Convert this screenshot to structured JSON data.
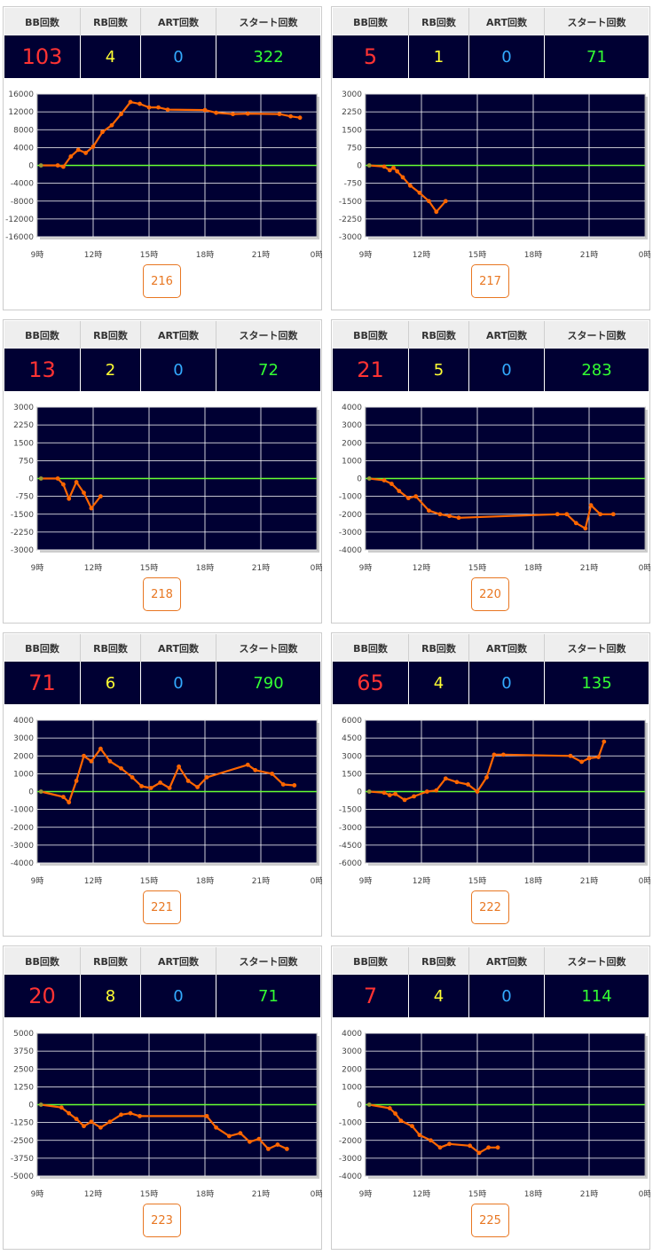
{
  "headers": {
    "bb": "BB回数",
    "rb": "RB回数",
    "art": "ART回数",
    "start": "スタート回数"
  },
  "x_ticks": [
    "9時",
    "12時",
    "15時",
    "18時",
    "21時",
    "0時"
  ],
  "colors": {
    "bb": "#ff3333",
    "rb": "#ffff33",
    "art": "#33aaff",
    "start": "#33ff33",
    "plot_bg": "#000033",
    "zero_line": "#66ff33",
    "series": "#ff6600",
    "button": "#e87722"
  },
  "cards": [
    {
      "machine": "216",
      "bb": "103",
      "rb": "4",
      "art": "0",
      "start": "322",
      "chart_data": {
        "type": "line",
        "xlim": [
          9,
          24
        ],
        "yticks": [
          16000,
          12000,
          8000,
          4000,
          0,
          -4000,
          -8000,
          -12000,
          -16000
        ],
        "ytick_labels": [
          "16000",
          "12000",
          "8000",
          "4000",
          "0",
          "-4000",
          "-8000",
          "-12000",
          "-16000"
        ],
        "ylim": [
          -16000,
          16000
        ],
        "points": [
          [
            9.2,
            0
          ],
          [
            10.1,
            0
          ],
          [
            10.4,
            -300
          ],
          [
            10.8,
            2000
          ],
          [
            11.2,
            3500
          ],
          [
            11.6,
            2800
          ],
          [
            12.0,
            4200
          ],
          [
            12.5,
            7500
          ],
          [
            13.0,
            9000
          ],
          [
            13.5,
            11500
          ],
          [
            14.0,
            14200
          ],
          [
            14.5,
            13800
          ],
          [
            15.0,
            13000
          ],
          [
            15.5,
            13000
          ],
          [
            16.0,
            12500
          ],
          [
            18.0,
            12400
          ],
          [
            18.6,
            11800
          ],
          [
            19.5,
            11500
          ],
          [
            20.3,
            11600
          ],
          [
            22.0,
            11500
          ],
          [
            22.6,
            11000
          ],
          [
            23.1,
            10700
          ]
        ]
      }
    },
    {
      "machine": "217",
      "bb": "5",
      "rb": "1",
      "art": "0",
      "start": "71",
      "chart_data": {
        "type": "line",
        "xlim": [
          9,
          24
        ],
        "yticks": [
          3000,
          2250,
          1500,
          750,
          0,
          -750,
          -1500,
          -2250,
          -3000
        ],
        "ytick_labels": [
          "3000",
          "2250",
          "1500",
          "750",
          "0",
          "-750",
          "-1500",
          "-2250",
          "-3000"
        ],
        "ylim": [
          -3000,
          3000
        ],
        "points": [
          [
            9.2,
            0
          ],
          [
            10.0,
            -50
          ],
          [
            10.3,
            -200
          ],
          [
            10.5,
            -100
          ],
          [
            10.7,
            -250
          ],
          [
            11.0,
            -500
          ],
          [
            11.4,
            -850
          ],
          [
            11.9,
            -1150
          ],
          [
            12.4,
            -1500
          ],
          [
            12.8,
            -1950
          ],
          [
            13.3,
            -1500
          ]
        ]
      }
    },
    {
      "machine": "218",
      "bb": "13",
      "rb": "2",
      "art": "0",
      "start": "72",
      "chart_data": {
        "type": "line",
        "xlim": [
          9,
          24
        ],
        "yticks": [
          3000,
          2250,
          1500,
          750,
          0,
          -750,
          -1500,
          -2250,
          -3000
        ],
        "ytick_labels": [
          "3000",
          "2250",
          "1500",
          "750",
          "0",
          "-750",
          "-1500",
          "-2250",
          "-3000"
        ],
        "ylim": [
          -3000,
          3000
        ],
        "points": [
          [
            9.2,
            0
          ],
          [
            10.1,
            0
          ],
          [
            10.4,
            -250
          ],
          [
            10.7,
            -850
          ],
          [
            11.1,
            -150
          ],
          [
            11.5,
            -600
          ],
          [
            11.9,
            -1250
          ],
          [
            12.4,
            -750
          ]
        ]
      }
    },
    {
      "machine": "220",
      "bb": "21",
      "rb": "5",
      "art": "0",
      "start": "283",
      "chart_data": {
        "type": "line",
        "xlim": [
          9,
          24
        ],
        "yticks": [
          4000,
          3000,
          2000,
          1000,
          0,
          -1000,
          -2000,
          -3000,
          -4000
        ],
        "ytick_labels": [
          "4000",
          "3000",
          "2000",
          "1000",
          "0",
          "-1000",
          "-2000",
          "-3000",
          "-4000"
        ],
        "ylim": [
          -4000,
          4000
        ],
        "points": [
          [
            9.2,
            0
          ],
          [
            10.0,
            -100
          ],
          [
            10.4,
            -300
          ],
          [
            10.8,
            -700
          ],
          [
            11.3,
            -1100
          ],
          [
            11.7,
            -1000
          ],
          [
            12.4,
            -1800
          ],
          [
            13.0,
            -2000
          ],
          [
            13.5,
            -2100
          ],
          [
            14.0,
            -2200
          ],
          [
            19.3,
            -2000
          ],
          [
            19.8,
            -2000
          ],
          [
            20.3,
            -2500
          ],
          [
            20.8,
            -2800
          ],
          [
            21.1,
            -1500
          ],
          [
            21.6,
            -2000
          ],
          [
            22.3,
            -2000
          ]
        ]
      }
    },
    {
      "machine": "221",
      "bb": "71",
      "rb": "6",
      "art": "0",
      "start": "790",
      "chart_data": {
        "type": "line",
        "xlim": [
          9,
          24
        ],
        "yticks": [
          4000,
          3000,
          2000,
          1000,
          0,
          -1000,
          -2000,
          -3000,
          -4000
        ],
        "ytick_labels": [
          "4000",
          "3000",
          "2000",
          "1000",
          "0",
          "-1000",
          "-2000",
          "-3000",
          "-4000"
        ],
        "ylim": [
          -4000,
          4000
        ],
        "points": [
          [
            9.2,
            0
          ],
          [
            10.4,
            -300
          ],
          [
            10.7,
            -600
          ],
          [
            11.1,
            600
          ],
          [
            11.5,
            2000
          ],
          [
            11.9,
            1700
          ],
          [
            12.4,
            2400
          ],
          [
            12.9,
            1700
          ],
          [
            13.5,
            1300
          ],
          [
            14.1,
            800
          ],
          [
            14.6,
            300
          ],
          [
            15.1,
            200
          ],
          [
            15.6,
            500
          ],
          [
            16.1,
            200
          ],
          [
            16.6,
            1400
          ],
          [
            17.1,
            600
          ],
          [
            17.6,
            250
          ],
          [
            18.1,
            800
          ],
          [
            20.3,
            1500
          ],
          [
            20.7,
            1200
          ],
          [
            21.6,
            1000
          ],
          [
            22.2,
            400
          ],
          [
            22.8,
            350
          ]
        ]
      }
    },
    {
      "machine": "222",
      "bb": "65",
      "rb": "4",
      "art": "0",
      "start": "135",
      "chart_data": {
        "type": "line",
        "xlim": [
          9,
          24
        ],
        "yticks": [
          6000,
          4500,
          3000,
          1500,
          0,
          -1500,
          -3000,
          -4500,
          -6000
        ],
        "ytick_labels": [
          "6000",
          "4500",
          "3000",
          "1500",
          "0",
          "-1500",
          "-3000",
          "-4500",
          "-6000"
        ],
        "ylim": [
          -6000,
          6000
        ],
        "points": [
          [
            9.2,
            0
          ],
          [
            10.0,
            -100
          ],
          [
            10.3,
            -300
          ],
          [
            10.6,
            -200
          ],
          [
            11.1,
            -700
          ],
          [
            11.6,
            -400
          ],
          [
            12.3,
            0
          ],
          [
            12.8,
            100
          ],
          [
            13.3,
            1100
          ],
          [
            13.9,
            800
          ],
          [
            14.5,
            600
          ],
          [
            15.0,
            0
          ],
          [
            15.5,
            1200
          ],
          [
            15.9,
            3100
          ],
          [
            16.4,
            3100
          ],
          [
            20.0,
            3000
          ],
          [
            20.6,
            2500
          ],
          [
            21.0,
            2800
          ],
          [
            21.5,
            2900
          ],
          [
            21.8,
            4200
          ]
        ]
      }
    },
    {
      "machine": "223",
      "bb": "20",
      "rb": "8",
      "art": "0",
      "start": "71",
      "chart_data": {
        "type": "line",
        "xlim": [
          9,
          24
        ],
        "yticks": [
          5000,
          3750,
          2500,
          1250,
          0,
          -1250,
          -2500,
          -3750,
          -5000
        ],
        "ytick_labels": [
          "5000",
          "3750",
          "2500",
          "1250",
          "0",
          "-1250",
          "-2500",
          "-3750",
          "-5000"
        ],
        "ylim": [
          -5000,
          5000
        ],
        "points": [
          [
            9.2,
            0
          ],
          [
            10.3,
            -200
          ],
          [
            10.7,
            -600
          ],
          [
            11.1,
            -1000
          ],
          [
            11.5,
            -1500
          ],
          [
            11.9,
            -1200
          ],
          [
            12.4,
            -1600
          ],
          [
            12.9,
            -1200
          ],
          [
            13.5,
            -700
          ],
          [
            14.0,
            -600
          ],
          [
            14.5,
            -800
          ],
          [
            18.1,
            -800
          ],
          [
            18.6,
            -1600
          ],
          [
            19.3,
            -2200
          ],
          [
            19.9,
            -2000
          ],
          [
            20.4,
            -2600
          ],
          [
            20.9,
            -2400
          ],
          [
            21.4,
            -3100
          ],
          [
            21.9,
            -2800
          ],
          [
            22.4,
            -3100
          ]
        ]
      }
    },
    {
      "machine": "225",
      "bb": "7",
      "rb": "4",
      "art": "0",
      "start": "114",
      "chart_data": {
        "type": "line",
        "xlim": [
          9,
          24
        ],
        "yticks": [
          4000,
          3000,
          2000,
          1000,
          0,
          -1000,
          -2000,
          -3000,
          -4000
        ],
        "ytick_labels": [
          "4000",
          "3000",
          "2000",
          "1000",
          "0",
          "-1000",
          "-2000",
          "-3000",
          "-4000"
        ],
        "ylim": [
          -4000,
          4000
        ],
        "points": [
          [
            9.2,
            0
          ],
          [
            10.3,
            -200
          ],
          [
            10.6,
            -500
          ],
          [
            10.9,
            -900
          ],
          [
            11.5,
            -1200
          ],
          [
            11.9,
            -1700
          ],
          [
            12.5,
            -2000
          ],
          [
            13.0,
            -2400
          ],
          [
            13.5,
            -2200
          ],
          [
            14.6,
            -2300
          ],
          [
            15.1,
            -2700
          ],
          [
            15.6,
            -2400
          ],
          [
            16.1,
            -2400
          ]
        ]
      }
    }
  ]
}
